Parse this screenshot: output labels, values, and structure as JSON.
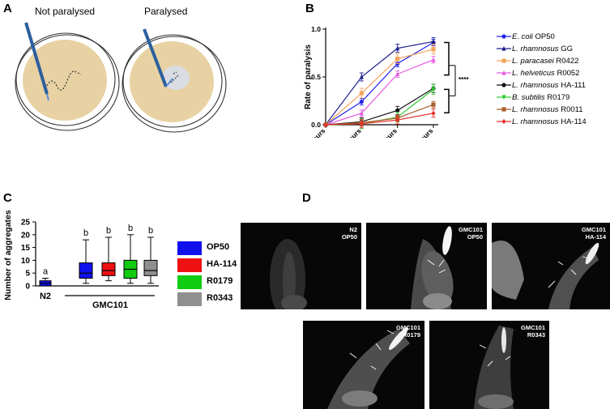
{
  "panels": {
    "a": {
      "letter": "A",
      "label_left": "Not paralysed",
      "label_right": "Paralysed"
    },
    "b": {
      "letter": "B"
    },
    "c": {
      "letter": "C"
    },
    "d": {
      "letter": "D"
    }
  },
  "colors": {
    "op50": "#2222ee",
    "gg": "#1f1f8f",
    "r0422": "#f5a35a",
    "r0052": "#e75be0",
    "ha111": "#111111",
    "r0179": "#2fcc2f",
    "r0011": "#a8612f",
    "ha114": "#e8302a",
    "box_op50": "#1111ee",
    "box_ha114": "#ee1111",
    "box_r0179": "#11cc11",
    "box_r0343": "#8f8f8f"
  },
  "chart_data": [
    {
      "type": "line",
      "ylabel": "Rate of paralysis",
      "xlabel": "",
      "x": [
        "0 hours",
        "24 hours",
        "48 hours",
        "72 hours"
      ],
      "ylim": [
        0,
        1.0
      ],
      "yticks": [
        "0.0",
        "0.5",
        "1.0"
      ],
      "significance": "****",
      "series": [
        {
          "name": "E. coli OP50",
          "genus": "E. coli",
          "rest": " OP50",
          "marker": "circle",
          "values": [
            0.0,
            0.24,
            0.64,
            0.86
          ]
        },
        {
          "name": "L. rhamnosus GG",
          "genus": "L. rhamnosus",
          "rest": " GG",
          "marker": "triangle",
          "values": [
            0.0,
            0.5,
            0.8,
            0.87
          ]
        },
        {
          "name": "L. paracasei R0422",
          "genus": "L. paracasei",
          "rest": " R0422",
          "marker": "square",
          "values": [
            0.0,
            0.33,
            0.69,
            0.79
          ]
        },
        {
          "name": "L. helveticus R0052",
          "genus": "L. helveticus",
          "rest": " R0052",
          "marker": "triangle",
          "values": [
            0.0,
            0.12,
            0.53,
            0.68
          ]
        },
        {
          "name": "L. rhamnosus HA-111",
          "genus": "L. rhamnosus",
          "rest": " HA-111",
          "marker": "circle",
          "values": [
            0.0,
            0.03,
            0.15,
            0.38
          ]
        },
        {
          "name": "B. subtilis R0179",
          "genus": "B. subtilis",
          "rest": " R0179",
          "marker": "triangle-down",
          "values": [
            0.0,
            0.01,
            0.08,
            0.37
          ]
        },
        {
          "name": "L. rhamnosus R0011",
          "genus": "L. rhamnosus",
          "rest": " R0011",
          "marker": "square",
          "values": [
            0.0,
            0.02,
            0.07,
            0.21
          ]
        },
        {
          "name": "L. rhamnosus HA-114",
          "genus": "L. rhamnosus",
          "rest": " HA-114",
          "marker": "diamond",
          "values": [
            0.0,
            0.01,
            0.05,
            0.12
          ]
        }
      ]
    },
    {
      "type": "box",
      "ylabel": "Number of aggregates",
      "ylim": [
        0,
        25
      ],
      "yticks": [
        "0",
        "5",
        "10",
        "15",
        "20",
        "25"
      ],
      "group_labels": [
        "N2",
        "GMC101"
      ],
      "legend": [
        "OP50",
        "HA-114",
        "R0179",
        "R0343"
      ],
      "boxes": [
        {
          "group": "N2",
          "strain": "OP50",
          "min": 0,
          "q1": 0,
          "median": 1,
          "q3": 2,
          "max": 3,
          "letter": "a"
        },
        {
          "group": "GMC101",
          "strain": "OP50",
          "min": 1,
          "q1": 3,
          "median": 5,
          "q3": 9,
          "max": 18,
          "letter": "b"
        },
        {
          "group": "GMC101",
          "strain": "HA-114",
          "min": 2,
          "q1": 4,
          "median": 6,
          "q3": 9,
          "max": 19,
          "letter": "b"
        },
        {
          "group": "GMC101",
          "strain": "R0179",
          "min": 1,
          "q1": 3,
          "median": 6.5,
          "q3": 10,
          "max": 20,
          "letter": "b"
        },
        {
          "group": "GMC101",
          "strain": "R0343",
          "min": 1,
          "q1": 4,
          "median": 6,
          "q3": 10,
          "max": 19,
          "letter": "b"
        }
      ]
    }
  ],
  "micrographs": [
    {
      "line1": "N2",
      "line2": "OP50"
    },
    {
      "line1": "GMC101",
      "line2": "OP50"
    },
    {
      "line1": "GMC101",
      "line2": "HA-114"
    },
    {
      "line1": "GMC101",
      "line2": "R0179"
    },
    {
      "line1": "GMC101",
      "line2": "R0343"
    }
  ]
}
